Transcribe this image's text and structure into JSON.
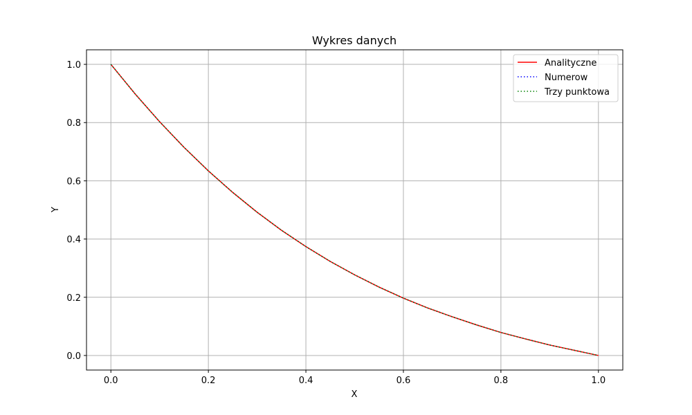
{
  "chart_data": {
    "type": "line",
    "title": "Wykres danych",
    "xlabel": "X",
    "ylabel": "Y",
    "xlim": [
      -0.05,
      1.05
    ],
    "ylim": [
      -0.05,
      1.05
    ],
    "xticks": [
      0.0,
      0.2,
      0.4,
      0.6,
      0.8,
      1.0
    ],
    "xtick_labels": [
      "0.0",
      "0.2",
      "0.4",
      "0.6",
      "0.8",
      "1.0"
    ],
    "yticks": [
      0.0,
      0.2,
      0.4,
      0.6,
      0.8,
      1.0
    ],
    "ytick_labels": [
      "0.0",
      "0.2",
      "0.4",
      "0.6",
      "0.8",
      "1.0"
    ],
    "grid": true,
    "legend_position": "top-right",
    "x": [
      0.0,
      0.05,
      0.1,
      0.15,
      0.2,
      0.25,
      0.3,
      0.35,
      0.4,
      0.45,
      0.5,
      0.55,
      0.6,
      0.65,
      0.7,
      0.75,
      0.8,
      0.85,
      0.9,
      0.95,
      1.0
    ],
    "series": [
      {
        "name": "Analityczne",
        "style": "solid",
        "color": "#ff0000",
        "values": [
          1.0,
          0.898,
          0.803,
          0.715,
          0.634,
          0.56,
          0.492,
          0.43,
          0.374,
          0.323,
          0.277,
          0.235,
          0.197,
          0.163,
          0.133,
          0.105,
          0.079,
          0.057,
          0.036,
          0.018,
          0.0
        ]
      },
      {
        "name": "Numerow",
        "style": "dotted",
        "color": "#0000ff",
        "values": [
          1.0,
          0.898,
          0.803,
          0.715,
          0.634,
          0.56,
          0.492,
          0.43,
          0.374,
          0.323,
          0.277,
          0.235,
          0.197,
          0.163,
          0.133,
          0.105,
          0.079,
          0.057,
          0.036,
          0.018,
          0.0
        ]
      },
      {
        "name": "Trzy punktowa",
        "style": "dotted",
        "color": "#008000",
        "values": [
          1.0,
          0.898,
          0.803,
          0.715,
          0.634,
          0.56,
          0.492,
          0.43,
          0.374,
          0.323,
          0.277,
          0.235,
          0.197,
          0.163,
          0.133,
          0.105,
          0.079,
          0.057,
          0.036,
          0.018,
          0.0
        ]
      }
    ]
  }
}
